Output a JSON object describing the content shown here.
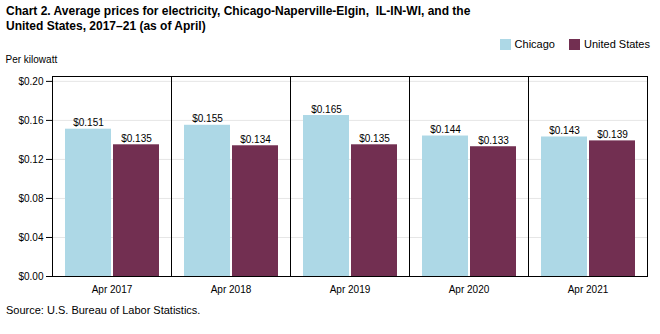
{
  "chart_data": {
    "type": "bar",
    "title": "Chart 2. Average prices for electricity, Chicago-Naperville-Elgin,  IL-IN-WI, and the\nUnited States, 2017–21 (as of April)",
    "ylabel": "Per kilowatt",
    "caption": "Source: U.S. Bureau of Labor Statistics.",
    "categories": [
      "Apr 2017",
      "Apr 2018",
      "Apr 2019",
      "Apr 2020",
      "Apr 2021"
    ],
    "series": [
      {
        "name": "Chicago",
        "color": "#add8e6",
        "values": [
          0.151,
          0.155,
          0.165,
          0.144,
          0.143
        ],
        "value_labels": [
          "$0.151",
          "$0.155",
          "$0.165",
          "$0.144",
          "$0.143"
        ]
      },
      {
        "name": "United States",
        "color": "#722F51",
        "values": [
          0.135,
          0.134,
          0.135,
          0.133,
          0.139
        ],
        "value_labels": [
          "$0.135",
          "$0.134",
          "$0.135",
          "$0.133",
          "$0.139"
        ]
      }
    ],
    "ylim": [
      0.0,
      0.205
    ],
    "yticks": [
      {
        "value": 0.0,
        "label": "$0.00"
      },
      {
        "value": 0.04,
        "label": "$0.04"
      },
      {
        "value": 0.08,
        "label": "$0.08"
      },
      {
        "value": 0.12,
        "label": "$0.12"
      },
      {
        "value": 0.16,
        "label": "$0.16"
      },
      {
        "value": 0.2,
        "label": "$0.20"
      }
    ],
    "grid": true,
    "legend": "upper right",
    "data_labels": true
  }
}
